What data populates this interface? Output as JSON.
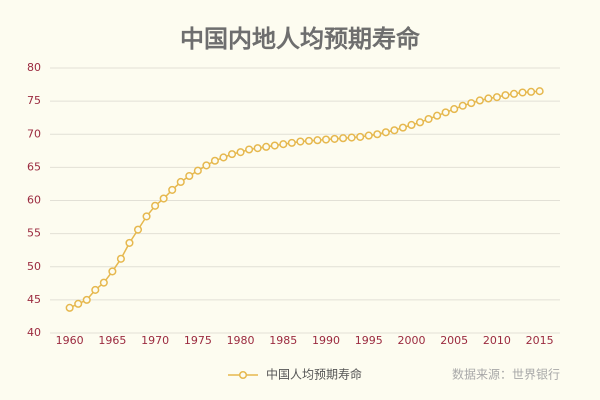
{
  "chart_data": {
    "type": "line",
    "title": "中国内地人均预期寿命",
    "source": "数据来源：世界银行",
    "x": [
      1960,
      1961,
      1962,
      1963,
      1964,
      1965,
      1966,
      1967,
      1968,
      1969,
      1970,
      1971,
      1972,
      1973,
      1974,
      1975,
      1976,
      1977,
      1978,
      1979,
      1980,
      1981,
      1982,
      1983,
      1984,
      1985,
      1986,
      1987,
      1988,
      1989,
      1990,
      1991,
      1992,
      1993,
      1994,
      1995,
      1996,
      1997,
      1998,
      1999,
      2000,
      2001,
      2002,
      2003,
      2004,
      2005,
      2006,
      2007,
      2008,
      2009,
      2010,
      2011,
      2012,
      2013,
      2014,
      2015
    ],
    "series": [
      {
        "name": "中国人均预期寿命",
        "color": "#e6b84e",
        "values": [
          43.8,
          44.4,
          45.0,
          46.5,
          47.6,
          49.3,
          51.2,
          53.6,
          55.6,
          57.6,
          59.2,
          60.3,
          61.6,
          62.8,
          63.7,
          64.5,
          65.3,
          66.0,
          66.5,
          67.0,
          67.3,
          67.7,
          67.9,
          68.1,
          68.3,
          68.5,
          68.7,
          68.9,
          69.0,
          69.1,
          69.2,
          69.3,
          69.4,
          69.5,
          69.6,
          69.8,
          70.0,
          70.3,
          70.6,
          71.0,
          71.4,
          71.8,
          72.3,
          72.8,
          73.3,
          73.8,
          74.3,
          74.7,
          75.1,
          75.4,
          75.6,
          75.9,
          76.1,
          76.3,
          76.4,
          76.5
        ]
      }
    ],
    "xlim": [
      1957.7,
      2018.2
    ],
    "xticks": [
      1960,
      1965,
      1970,
      1975,
      1980,
      1985,
      1990,
      1995,
      2000,
      2005,
      2010,
      2015
    ],
    "ylim": [
      40,
      80
    ],
    "yticks": [
      40,
      45,
      50,
      55,
      60,
      65,
      70,
      75,
      80
    ],
    "grid": true
  }
}
